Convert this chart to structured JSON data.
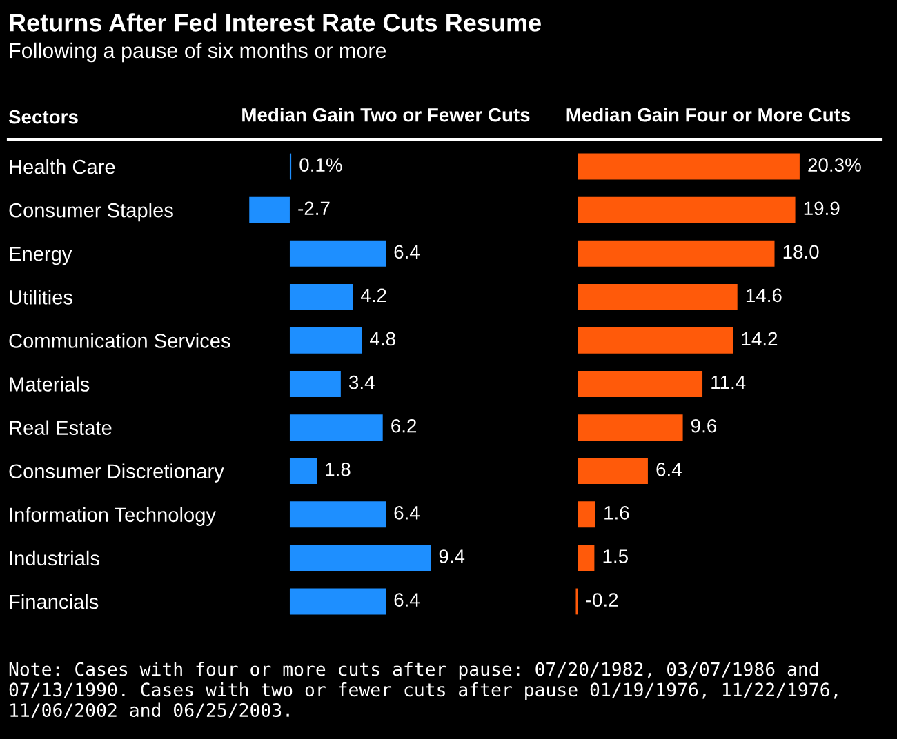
{
  "chart_data": [
    {
      "type": "bar",
      "orientation": "horizontal",
      "title": "Returns After Fed Interest Rate Cuts Resume",
      "subtitle": "Following a pause of six months or more",
      "xlabel": "Median Gain Two or Fewer Cuts",
      "ylabel": "Sectors",
      "tick_labels": "y",
      "categories": [
        "Health Care",
        "Consumer Staples",
        "Energy",
        "Utilities",
        "Communication Services",
        "Materials",
        "Real Estate",
        "Consumer Discretionary",
        "Information Technology",
        "Industrials",
        "Financials"
      ],
      "values": [
        0.1,
        -2.7,
        6.4,
        4.2,
        4.8,
        3.4,
        6.2,
        1.8,
        6.4,
        9.4,
        6.4
      ],
      "value_labels": [
        "0.1%",
        "-2.7",
        "6.4",
        "4.2",
        "4.8",
        "3.4",
        "6.2",
        "1.8",
        "6.4",
        "9.4",
        "6.4"
      ],
      "color": "#1e8fff",
      "annotations": [
        "Note: Cases with four or more cuts after pause: 07/20/1982, 03/07/1986 and 07/13/1990. Cases with two or fewer cuts after pause 01/19/1976, 11/22/1976, 11/06/2002 and 06/25/2003."
      ]
    },
    {
      "type": "bar",
      "orientation": "horizontal",
      "xlabel": "Median Gain Four or More Cuts",
      "tick_labels": false,
      "categories": [
        null,
        null,
        null,
        null,
        null,
        null,
        null,
        null,
        null,
        null,
        null
      ],
      "values": [
        20.3,
        19.9,
        18.0,
        14.6,
        14.2,
        11.4,
        9.6,
        6.4,
        1.6,
        1.5,
        -0.2
      ],
      "value_labels": [
        "20.3%",
        "19.9",
        "18.0",
        "14.6",
        "14.2",
        "11.4",
        "9.6",
        "6.4",
        "1.6",
        "1.5",
        "-0.2"
      ],
      "color": "#ff5a0a"
    }
  ]
}
